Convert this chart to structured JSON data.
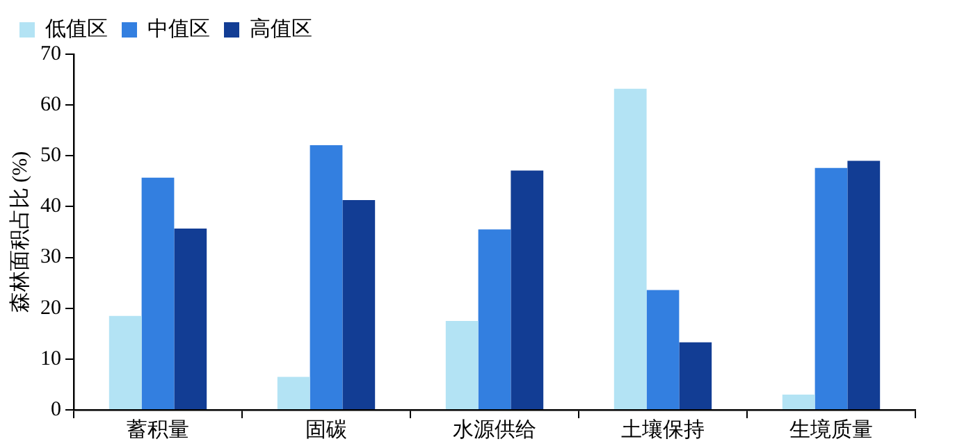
{
  "chart_data": {
    "type": "bar",
    "ylabel": "森林面积占比 (%)",
    "categories": [
      "蓄积量",
      "固碳",
      "水源供给",
      "土壤保持",
      "生境质量"
    ],
    "series": [
      {
        "name": "低值区",
        "color": "#b3e3f4",
        "values": [
          18.5,
          6.5,
          17.5,
          63.2,
          3.0
        ]
      },
      {
        "name": "中值区",
        "color": "#337fe0",
        "values": [
          45.7,
          52.1,
          35.5,
          23.6,
          47.6
        ]
      },
      {
        "name": "高值区",
        "color": "#123d94",
        "values": [
          35.7,
          41.3,
          47.1,
          13.3,
          49.0
        ]
      }
    ],
    "ylim": [
      0,
      70
    ],
    "yticks": [
      0,
      10,
      20,
      30,
      40,
      50,
      60,
      70
    ],
    "grid": false,
    "legend": "top left"
  }
}
